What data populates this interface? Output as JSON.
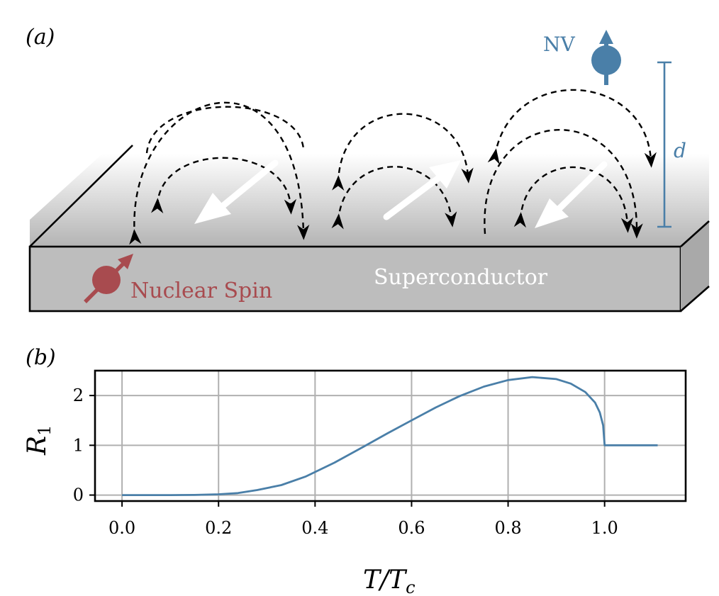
{
  "panel_a": {
    "label": "(a)",
    "nv_label": "NV",
    "distance_label": "d",
    "nuclear_label": "Nuclear Spin",
    "super_label": "Superconductor",
    "colors": {
      "nv": "#4a7fa8",
      "nuclear": "#a84b4f",
      "slab_front": "#bdbdbd"
    }
  },
  "panel_b": {
    "label": "(b)",
    "x_label_main": "T/T",
    "x_label_sub": "c",
    "y_label_main": "R",
    "y_label_sub": "1"
  },
  "chart_data": {
    "type": "line",
    "xlim": [
      -0.056,
      1.168
    ],
    "ylim": [
      -0.12,
      2.5
    ],
    "xticks": [
      0.0,
      0.2,
      0.4,
      0.6,
      0.8,
      1.0
    ],
    "xtick_labels": [
      "0.0",
      "0.2",
      "0.4",
      "0.6",
      "0.8",
      "1.0"
    ],
    "yticks": [
      0,
      1,
      2
    ],
    "ytick_labels": [
      "0",
      "1",
      "2"
    ],
    "grid": true,
    "series": [
      {
        "color": "#4a7fa8",
        "x": [
          0.0,
          0.1,
          0.15,
          0.2,
          0.24,
          0.28,
          0.33,
          0.38,
          0.44,
          0.5,
          0.55,
          0.6,
          0.65,
          0.7,
          0.75,
          0.8,
          0.85,
          0.9,
          0.93,
          0.96,
          0.98,
          0.99,
          0.997,
          1.0,
          1.0,
          1.05,
          1.11
        ],
        "y": [
          0.0,
          0.0,
          0.003,
          0.015,
          0.04,
          0.1,
          0.2,
          0.37,
          0.65,
          0.97,
          1.24,
          1.5,
          1.76,
          1.99,
          2.18,
          2.31,
          2.37,
          2.33,
          2.24,
          2.07,
          1.86,
          1.66,
          1.4,
          1.0,
          1.0,
          1.0,
          1.0
        ]
      }
    ]
  }
}
